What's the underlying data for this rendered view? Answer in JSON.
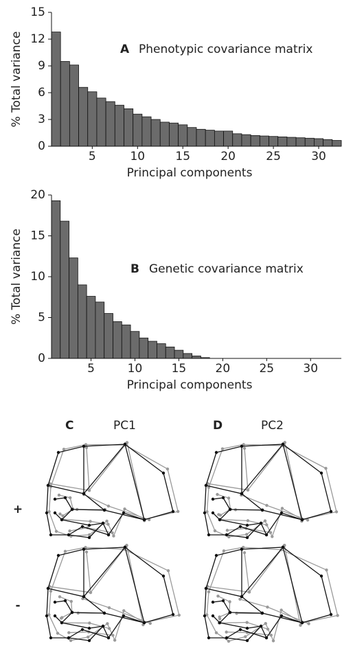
{
  "chart_data": [
    {
      "type": "bar",
      "label": "A",
      "annotation": "Phenotypic covariance matrix",
      "xlabel": "Principal components",
      "ylabel": "% Total variance",
      "color": "#6b6b6b",
      "x": [
        1,
        2,
        3,
        4,
        5,
        6,
        7,
        8,
        9,
        10,
        11,
        12,
        13,
        14,
        15,
        16,
        17,
        18,
        19,
        20,
        21,
        22,
        23,
        24,
        25,
        26,
        27,
        28,
        29,
        30,
        31,
        32
      ],
      "values": [
        12.8,
        9.5,
        9.1,
        6.6,
        6.1,
        5.4,
        5.0,
        4.6,
        4.2,
        3.6,
        3.3,
        3.0,
        2.7,
        2.6,
        2.4,
        2.1,
        1.9,
        1.8,
        1.7,
        1.7,
        1.4,
        1.3,
        1.2,
        1.15,
        1.1,
        1.05,
        1.0,
        0.95,
        0.9,
        0.85,
        0.75,
        0.65
      ],
      "xlim": [
        0.5,
        32.5
      ],
      "xticks": [
        5,
        10,
        15,
        20,
        25,
        30
      ],
      "ylim": [
        0,
        15
      ],
      "yticks": [
        0,
        3,
        6,
        9,
        12,
        15
      ]
    },
    {
      "type": "bar",
      "label": "B",
      "annotation": "Genetic covariance matrix",
      "xlabel": "Principal components",
      "ylabel": "% Total variance",
      "color": "#6b6b6b",
      "x": [
        1,
        2,
        3,
        4,
        5,
        6,
        7,
        8,
        9,
        10,
        11,
        12,
        13,
        14,
        15,
        16,
        17,
        18,
        19,
        20,
        21,
        22,
        23,
        24,
        25,
        26,
        27,
        28,
        29,
        30,
        31,
        32,
        33
      ],
      "values": [
        19.3,
        16.8,
        12.3,
        9.0,
        7.6,
        6.9,
        5.5,
        4.5,
        4.1,
        3.3,
        2.5,
        2.1,
        1.8,
        1.4,
        1.0,
        0.6,
        0.3,
        0.1,
        0,
        0,
        0,
        0,
        0,
        0,
        0,
        0,
        0,
        0,
        0,
        0,
        0,
        0,
        0
      ],
      "xlim": [
        0.5,
        33.5
      ],
      "xticks": [
        5,
        10,
        15,
        20,
        25,
        30
      ],
      "ylim": [
        0,
        20
      ],
      "yticks": [
        0,
        5,
        10,
        15,
        20
      ]
    }
  ],
  "panels": [
    {
      "letter": "C",
      "title": "PC1"
    },
    {
      "letter": "D",
      "title": "PC2"
    }
  ],
  "rows": [
    "+",
    "-"
  ]
}
